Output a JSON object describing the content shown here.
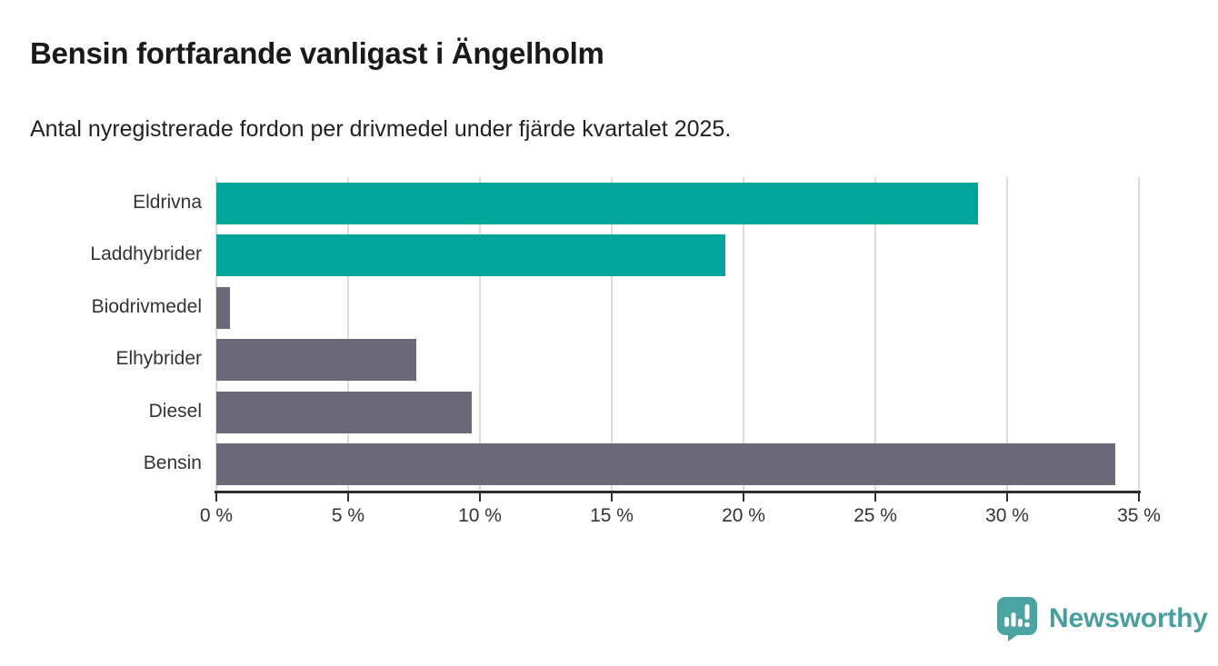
{
  "header": {
    "title": "Bensin fortfarande vanligast i Ängelholm",
    "subtitle": "Antal nyregistrerade fordon per drivmedel under fjärde kvartalet 2025."
  },
  "chart_data": {
    "type": "bar",
    "orientation": "horizontal",
    "title": "Bensin fortfarande vanligast i Ängelholm",
    "subtitle": "Antal nyregistrerade fordon per drivmedel under fjärde kvartalet 2025.",
    "categories": [
      "Eldrivna",
      "Laddhybrider",
      "Biodrivmedel",
      "Elhybrider",
      "Diesel",
      "Bensin"
    ],
    "values": [
      28.9,
      19.3,
      0.5,
      7.6,
      9.7,
      34.1
    ],
    "unit": "%",
    "bar_colors": [
      "#00a49b",
      "#00a49b",
      "#6b6977",
      "#6b6977",
      "#6b6977",
      "#6b6977"
    ],
    "xlabel": "",
    "ylabel": "",
    "xlim": [
      0,
      35
    ],
    "x_ticks": [
      0,
      5,
      10,
      15,
      20,
      25,
      30,
      35
    ],
    "x_tick_labels": [
      "0 %",
      "5 %",
      "10 %",
      "15 %",
      "20 %",
      "25 %",
      "30 %",
      "35 %"
    ],
    "grid": "vertical-only",
    "legend": "none"
  },
  "footer": {
    "brand": "Newsworthy",
    "logo_icon": "newsworthy-speech-bubble-chart-icon",
    "brand_color": "#4a9f9e"
  },
  "colors": {
    "accent_teal": "#00a49b",
    "neutral_gray": "#6b6977",
    "gridline": "#dcdcde",
    "axis": "#2e2e2e",
    "background": "#ffffff"
  }
}
